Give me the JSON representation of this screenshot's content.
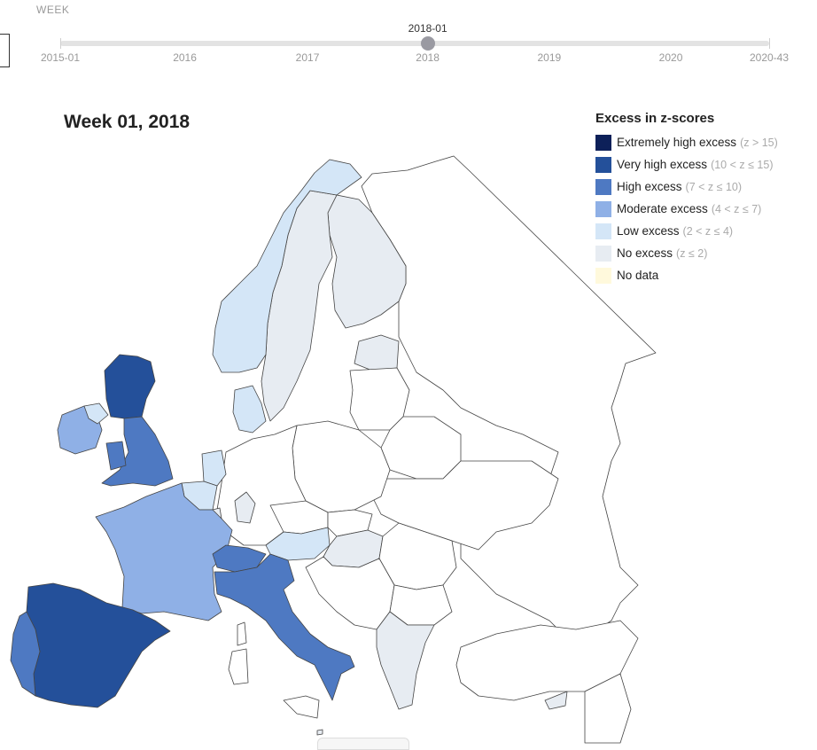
{
  "timeline": {
    "heading": "WEEK",
    "current_label": "2018-01",
    "current_fraction": 0.5183,
    "ticks": [
      {
        "label": "2015-01",
        "fraction": 0.0
      },
      {
        "label": "2016",
        "fraction": 0.1757
      },
      {
        "label": "2017",
        "fraction": 0.3488
      },
      {
        "label": "2018",
        "fraction": 0.5183
      },
      {
        "label": "2019",
        "fraction": 0.6898
      },
      {
        "label": "2020",
        "fraction": 0.8613
      },
      {
        "label": "2020-43",
        "fraction": 1.0
      }
    ]
  },
  "map": {
    "title": "Week 01, 2018",
    "region": "Europe",
    "regions": [
      {
        "name": "Spain",
        "category": "very_high"
      },
      {
        "name": "Portugal",
        "category": "high"
      },
      {
        "name": "France",
        "category": "moderate"
      },
      {
        "name": "Italy",
        "category": "high"
      },
      {
        "name": "Switzerland",
        "category": "high"
      },
      {
        "name": "Scotland",
        "category": "very_high"
      },
      {
        "name": "England",
        "category": "high"
      },
      {
        "name": "Wales",
        "category": "high"
      },
      {
        "name": "Ireland",
        "category": "moderate"
      },
      {
        "name": "Northern Ireland",
        "category": "low"
      },
      {
        "name": "Belgium",
        "category": "low"
      },
      {
        "name": "Netherlands",
        "category": "low"
      },
      {
        "name": "Luxembourg",
        "category": "none"
      },
      {
        "name": "Germany (Hesse)",
        "category": "none"
      },
      {
        "name": "Denmark",
        "category": "low"
      },
      {
        "name": "Norway",
        "category": "low"
      },
      {
        "name": "Sweden",
        "category": "none"
      },
      {
        "name": "Finland",
        "category": "none"
      },
      {
        "name": "Estonia",
        "category": "none"
      },
      {
        "name": "Austria",
        "category": "low"
      },
      {
        "name": "Hungary",
        "category": "none"
      },
      {
        "name": "Greece",
        "category": "none"
      },
      {
        "name": "Cyprus",
        "category": "none"
      },
      {
        "name": "Malta",
        "category": "none"
      }
    ]
  },
  "legend": {
    "title": "Excess in z-scores",
    "items": [
      {
        "key": "extreme",
        "label": "Extremely high excess",
        "range": "(z > 15)",
        "color": "#0d2059"
      },
      {
        "key": "very_high",
        "label": "Very high excess",
        "range": "(10 < z ≤ 15)",
        "color": "#24509a"
      },
      {
        "key": "high",
        "label": "High excess",
        "range": "(7 < z ≤ 10)",
        "color": "#4e79c2"
      },
      {
        "key": "moderate",
        "label": "Moderate excess",
        "range": "(4 < z ≤ 7)",
        "color": "#8fb0e6"
      },
      {
        "key": "low",
        "label": "Low excess",
        "range": "(2 < z ≤ 4)",
        "color": "#d4e6f7"
      },
      {
        "key": "none",
        "label": "No excess",
        "range": "(z ≤ 2)",
        "color": "#e7ecf2"
      },
      {
        "key": "nodata",
        "label": "No data",
        "range": "",
        "color": "#fff9dc"
      }
    ],
    "outline_color": "#444444",
    "unshaded_color": "#ffffff"
  }
}
